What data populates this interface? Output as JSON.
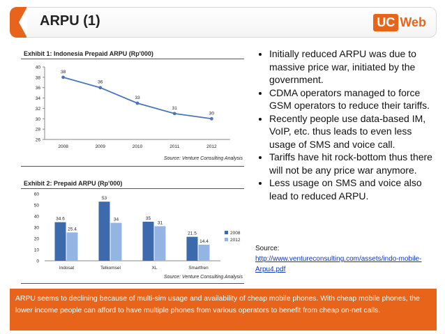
{
  "header": {
    "title": "ARPU (1)",
    "logo_uc": "UC",
    "logo_web": "Web"
  },
  "chart_data": [
    {
      "type": "line",
      "title": "Exhibit 1: Indonesia Prepaid ARPU (Rp'000)",
      "source_note": "Source: Venture Consulting Analysis",
      "categories": [
        "2008",
        "2009",
        "2010",
        "2011",
        "2012"
      ],
      "values": [
        38,
        36,
        33,
        31,
        30
      ],
      "ylim": [
        26,
        40
      ],
      "yticks": [
        26,
        28,
        30,
        32,
        34,
        36,
        38,
        40
      ],
      "grid": false,
      "color": "#4a76b8"
    },
    {
      "type": "bar",
      "title": "Exhibit 2: Prepaid ARPU (Rp'000)",
      "source_note": "Source: Venture Consulting Analysis",
      "categories": [
        "Indosat",
        "Telkomsel",
        "XL",
        "Smartfren"
      ],
      "series": [
        {
          "name": "2008",
          "values": [
            34.6,
            53,
            35,
            21.5
          ],
          "color": "#3d6aac"
        },
        {
          "name": "2012",
          "values": [
            25.4,
            34,
            31,
            14.4
          ],
          "color": "#94b4e4"
        }
      ],
      "ylim": [
        0,
        60
      ],
      "yticks": [
        0,
        10,
        20,
        30,
        40,
        50,
        60
      ],
      "legend": "right",
      "grid": false
    }
  ],
  "bullets": [
    "Initially reduced ARPU was due to massive price war, initiated by the government.",
    "CDMA operators managed to force GSM operators to reduce their tariffs.",
    "Recently people use data-based IM, VoIP, etc. thus leads to even less usage of SMS and voice call.",
    "Tariffs have hit rock-bottom thus there will not be any price war anymore.",
    "Less usage on SMS and voice also lead to reduced ARPU."
  ],
  "source": {
    "label": "Source:",
    "url": "http://www.ventureconsulting.com/assets/indo-mobile-Arpu4.pdf"
  },
  "footer_text": "ARPU seems to declining because of multi-sim usage and availability of cheap mobile phones. With cheap mobile phones, the lower income people can afford to have multiple phones from various operators to benefit from cheap on-net calls."
}
